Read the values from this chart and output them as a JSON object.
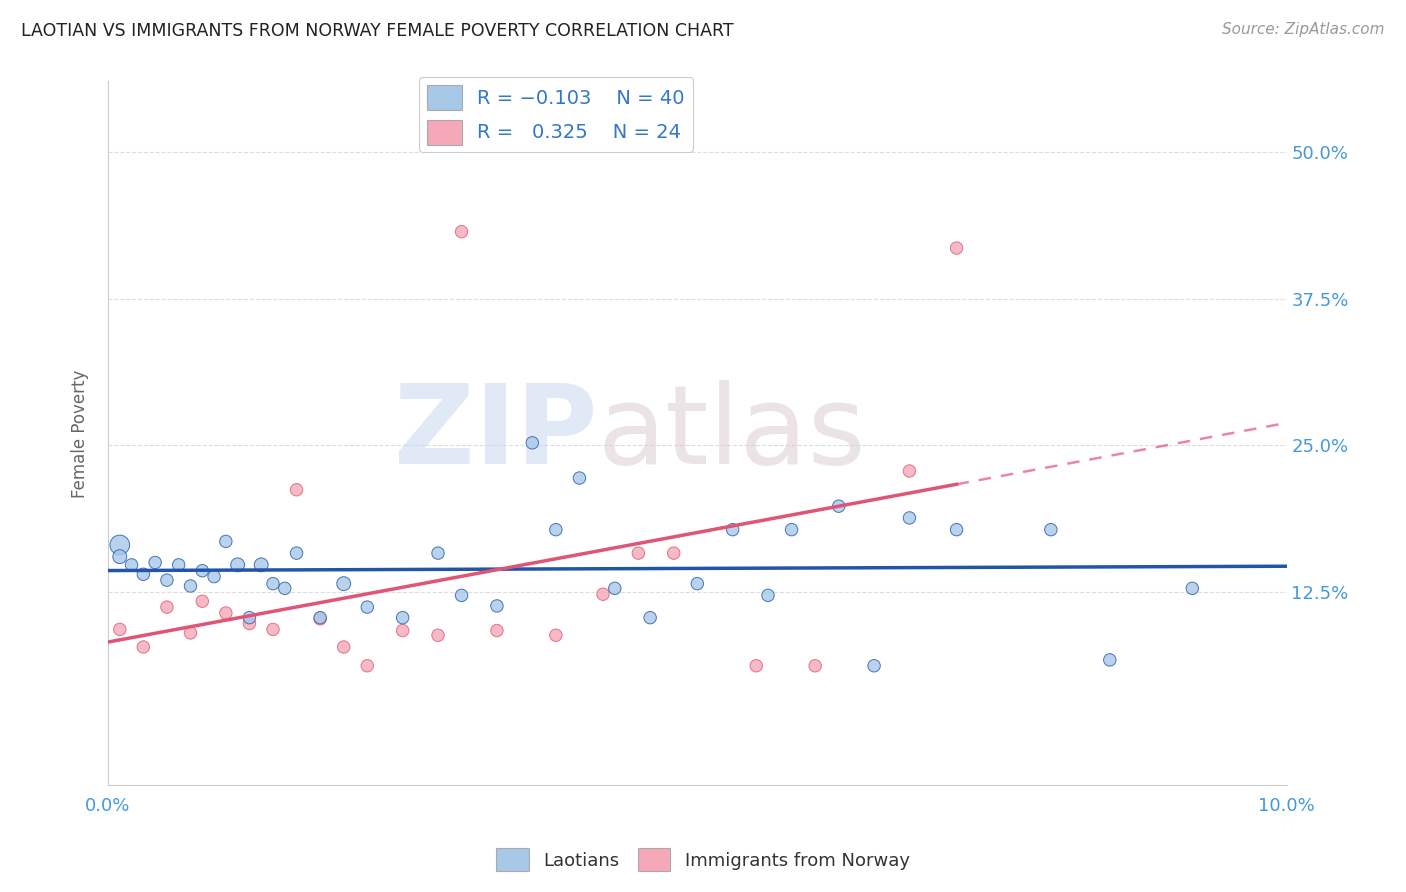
{
  "title": "LAOTIAN VS IMMIGRANTS FROM NORWAY FEMALE POVERTY CORRELATION CHART",
  "source": "Source: ZipAtlas.com",
  "ylabel": "Female Poverty",
  "ytick_labels": [
    "50.0%",
    "37.5%",
    "25.0%",
    "12.5%"
  ],
  "ytick_values": [
    0.5,
    0.375,
    0.25,
    0.125
  ],
  "xlim": [
    0.0,
    0.1
  ],
  "ylim": [
    -0.04,
    0.56
  ],
  "color_laotian": "#a8c8e8",
  "color_norway": "#f4a8b8",
  "color_line_laotian": "#2255aa",
  "color_line_norway": "#e05575",
  "laotian_x": [
    0.001,
    0.001,
    0.002,
    0.003,
    0.004,
    0.005,
    0.006,
    0.007,
    0.008,
    0.009,
    0.01,
    0.011,
    0.012,
    0.013,
    0.014,
    0.015,
    0.016,
    0.018,
    0.02,
    0.022,
    0.025,
    0.028,
    0.03,
    0.033,
    0.036,
    0.038,
    0.04,
    0.043,
    0.046,
    0.05,
    0.053,
    0.056,
    0.058,
    0.062,
    0.065,
    0.068,
    0.072,
    0.08,
    0.085,
    0.092
  ],
  "laotian_y": [
    0.165,
    0.155,
    0.148,
    0.14,
    0.15,
    0.135,
    0.148,
    0.13,
    0.143,
    0.138,
    0.168,
    0.148,
    0.103,
    0.148,
    0.132,
    0.128,
    0.158,
    0.103,
    0.132,
    0.112,
    0.103,
    0.158,
    0.122,
    0.113,
    0.252,
    0.178,
    0.222,
    0.128,
    0.103,
    0.132,
    0.178,
    0.122,
    0.178,
    0.198,
    0.062,
    0.188,
    0.178,
    0.178,
    0.067,
    0.128
  ],
  "laotian_size": [
    200,
    100,
    80,
    80,
    80,
    80,
    80,
    80,
    80,
    80,
    80,
    100,
    80,
    100,
    80,
    80,
    80,
    80,
    100,
    80,
    80,
    80,
    80,
    80,
    80,
    80,
    80,
    80,
    80,
    80,
    80,
    80,
    80,
    80,
    80,
    80,
    80,
    80,
    80,
    80
  ],
  "norway_x": [
    0.001,
    0.003,
    0.005,
    0.007,
    0.008,
    0.01,
    0.012,
    0.014,
    0.016,
    0.018,
    0.02,
    0.022,
    0.025,
    0.028,
    0.03,
    0.033,
    0.038,
    0.042,
    0.045,
    0.048,
    0.055,
    0.06,
    0.068,
    0.072
  ],
  "norway_y": [
    0.093,
    0.078,
    0.112,
    0.09,
    0.117,
    0.107,
    0.098,
    0.093,
    0.212,
    0.102,
    0.078,
    0.062,
    0.092,
    0.088,
    0.432,
    0.092,
    0.088,
    0.123,
    0.158,
    0.158,
    0.062,
    0.062,
    0.228,
    0.418
  ],
  "norway_size": [
    80,
    80,
    80,
    80,
    80,
    80,
    80,
    80,
    80,
    80,
    80,
    80,
    80,
    80,
    80,
    80,
    80,
    80,
    80,
    80,
    80,
    80,
    80,
    80
  ],
  "background_color": "#ffffff",
  "grid_color": "#dddddd"
}
